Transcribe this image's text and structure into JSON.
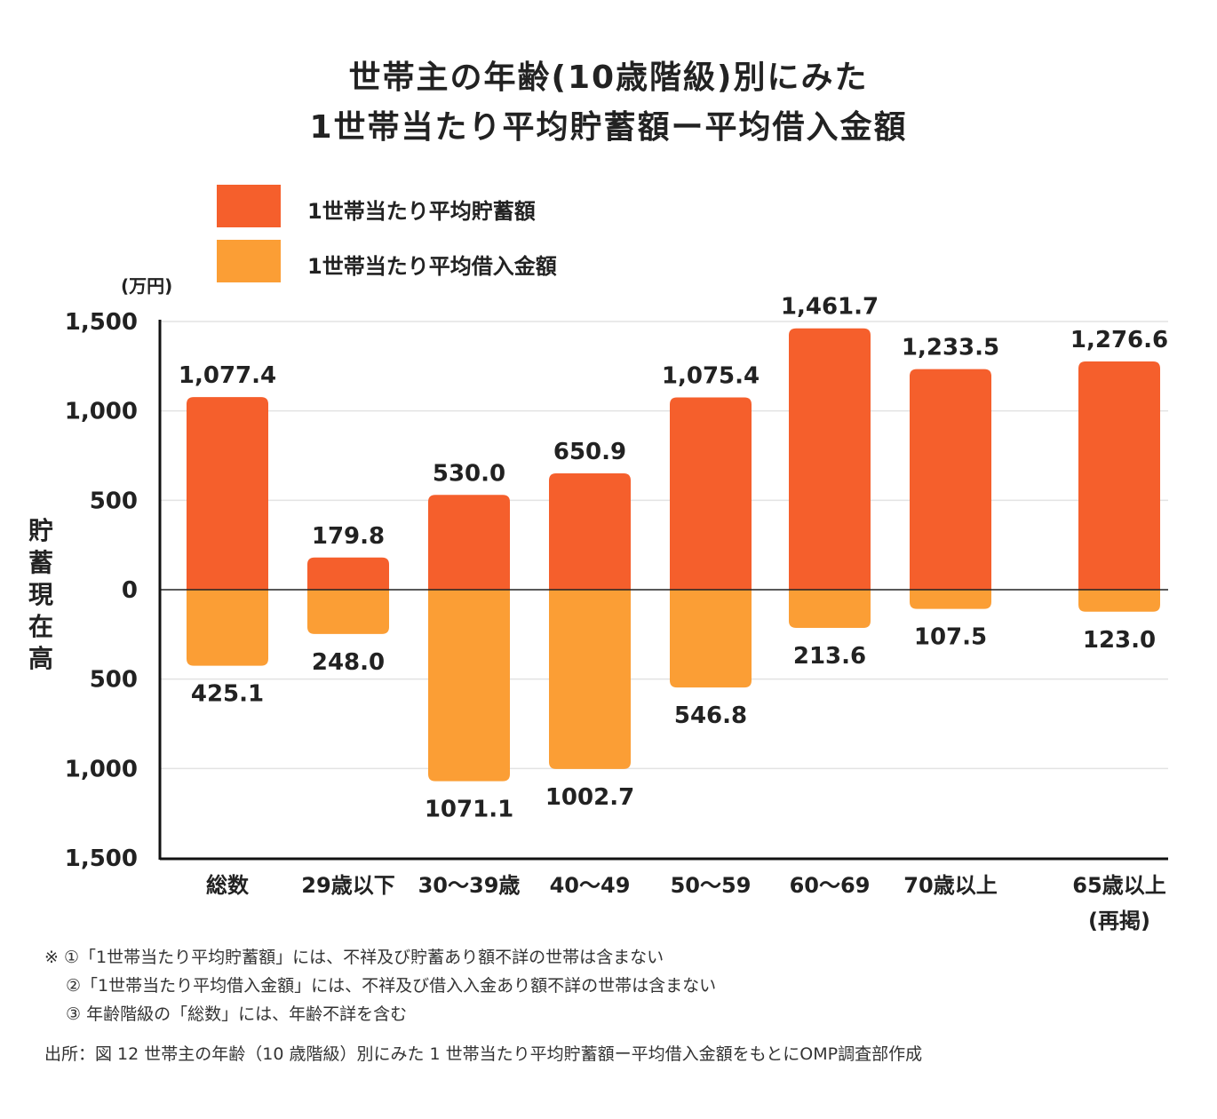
{
  "title_lines": [
    "世帯主の年齢(10歳階級)別にみた",
    "1世帯当たり平均貯蓄額ー平均借入金額"
  ],
  "unit": "(万円)",
  "ylabel": "貯蓄現在高",
  "colors": {
    "savings": "#F55F2C",
    "debt": "#FB9E35"
  },
  "chart_data": {
    "type": "bar",
    "categories": [
      "総数",
      "29歳以下",
      "30～39歳",
      "40～49",
      "50～59",
      "60～69",
      "70歳以上",
      "65歳以上\n(再掲)"
    ],
    "series": [
      {
        "name": "1世帯当たり平均貯蓄額",
        "values": [
          1077.4,
          179.8,
          530.0,
          650.9,
          1075.4,
          1461.7,
          1233.5,
          1276.6
        ],
        "labels": [
          "1,077.4",
          "179.8",
          "530.0",
          "650.9",
          "1,075.4",
          "1,461.7",
          "1,233.5",
          "1,276.6"
        ]
      },
      {
        "name": "1世帯当たり平均借入金額",
        "values": [
          -425.1,
          -248.0,
          -1071.1,
          -1002.7,
          -546.8,
          -213.6,
          -107.5,
          -123.0
        ],
        "labels": [
          "425.1",
          "248.0",
          "1071.1",
          "1002.7",
          "546.8",
          "213.6",
          "107.5",
          "123.0"
        ]
      }
    ],
    "ylim": [
      -1500,
      1500
    ],
    "yticks": [
      1500,
      1000,
      500,
      0,
      -500,
      -1000,
      -1500
    ],
    "ytick_labels": [
      "1,500",
      "1,000",
      "500",
      "0",
      "500",
      "1,000",
      "1,500"
    ],
    "grid": true,
    "legend": "top-left",
    "ylabel": "貯蓄現在高"
  },
  "notes": [
    "※ ①「1世帯当たり平均貯蓄額」には、不祥及び貯蓄あり額不詳の世帯は含まない",
    "②「1世帯当たり平均借入金額」には、不祥及び借入入金あり額不詳の世帯は含まない",
    "③ 年齢階級の「総数」には、年齢不詳を含む"
  ],
  "source": "出所：図 12 世帯主の年齢（10 歳階級）別にみた 1 世帯当たり平均貯蓄額ー平均借入金額をもとにOMP調査部作成"
}
